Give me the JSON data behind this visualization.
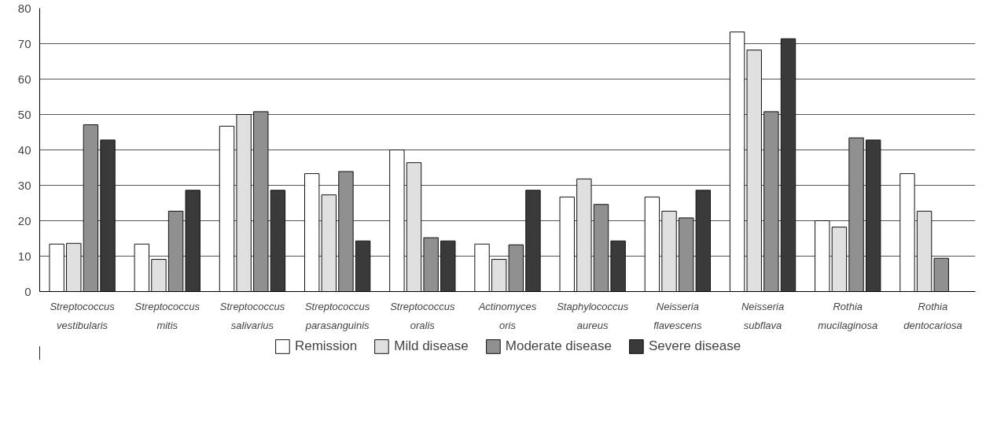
{
  "chart_data": {
    "type": "bar",
    "categories": [
      "Streptococcus vestibularis",
      "Streptococcus mitis",
      "Streptococcus salivarius",
      "Streptococcus parasanguinis",
      "Streptococcus oralis",
      "Actinomyces oris",
      "Staphylococcus aureus",
      "Neisseria flavescens",
      "Neisseria subflava",
      "Rothia mucilaginosa",
      "Rothia dentocariosa"
    ],
    "series": [
      {
        "name": "Remission",
        "color": "#ffffff",
        "values": [
          13.4,
          13.4,
          46.7,
          33.3,
          40,
          13.4,
          26.7,
          26.7,
          73.3,
          20,
          33.3
        ]
      },
      {
        "name": "Mild disease",
        "color": "#e0e0e0",
        "values": [
          13.6,
          9.1,
          50,
          27.3,
          36.4,
          9.1,
          31.8,
          22.7,
          68.2,
          18.2,
          22.7
        ]
      },
      {
        "name": "Moderate disease",
        "color": "#909090",
        "values": [
          47.1,
          22.7,
          50.8,
          33.9,
          15.2,
          13.2,
          24.6,
          20.8,
          50.8,
          43.4,
          9.4
        ]
      },
      {
        "name": "Severe disease",
        "color": "#3a3a3a",
        "values": [
          42.8,
          28.6,
          28.6,
          14.3,
          14.3,
          28.6,
          14.3,
          28.6,
          71.4,
          42.8,
          null
        ]
      }
    ],
    "ylim": [
      0,
      80
    ],
    "yticks": [
      0,
      10,
      20,
      30,
      40,
      50,
      60,
      70,
      80
    ],
    "grid": "y",
    "legend": "bottom"
  }
}
